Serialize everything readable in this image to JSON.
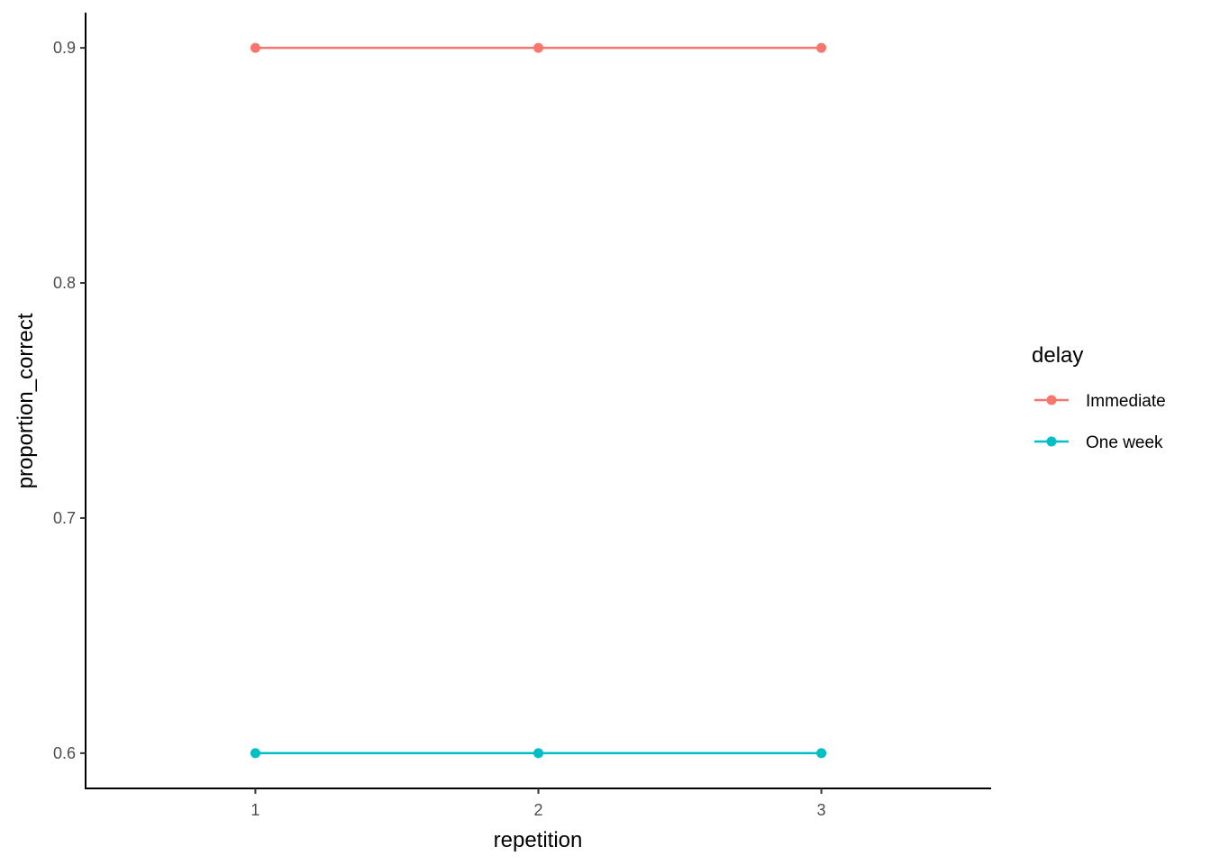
{
  "chart_data": {
    "type": "line",
    "title": "",
    "xlabel": "repetition",
    "ylabel": "proportion_correct",
    "x": [
      1,
      2,
      3
    ],
    "x_tick_labels": [
      "1",
      "2",
      "3"
    ],
    "y_tick_values": [
      0.6,
      0.7,
      0.8,
      0.9
    ],
    "y_tick_labels": [
      "0.6",
      "0.7",
      "0.8",
      "0.9"
    ],
    "xlim": [
      0.4,
      3.6
    ],
    "ylim": [
      0.585,
      0.915
    ],
    "grid": false,
    "legend": {
      "title": "delay",
      "placement": "right"
    },
    "series": [
      {
        "name": "Immediate",
        "color": "#F8766D",
        "values": [
          0.9,
          0.9,
          0.9
        ]
      },
      {
        "name": "One week",
        "color": "#00BFC4",
        "values": [
          0.6,
          0.6,
          0.6
        ]
      }
    ]
  }
}
